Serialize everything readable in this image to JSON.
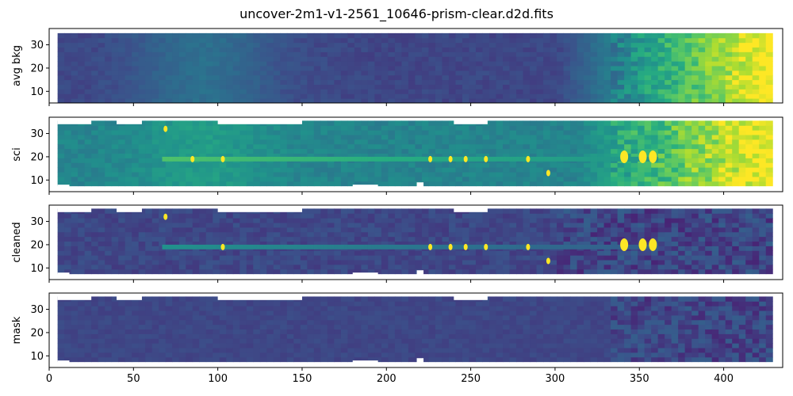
{
  "figure": {
    "title": "uncover-2m1-v1-2561_10646-prism-clear.d2d.fits"
  },
  "colors": {
    "colormap": "viridis",
    "background_fill": "#3b4a8a",
    "low": "#3e4c8a",
    "mid": "#21918c",
    "high": "#fde725"
  },
  "chart_data": [
    {
      "type": "heatmap",
      "name": "avg bkg",
      "ylabel": "avg bkg",
      "xlim": [
        0,
        435
      ],
      "ylim": [
        5,
        37
      ],
      "xticks": [
        0,
        50,
        100,
        150,
        200,
        250,
        300,
        350,
        400
      ],
      "yticks": [
        10,
        20,
        30
      ],
      "show_x_tick_labels": false,
      "valid_x_range": [
        5,
        428
      ],
      "valid_y_range": [
        5,
        35
      ],
      "description_of_values": "background rises from ~0.1 at left to saturation near x~360-428; faint horizontal striping every ~4 px",
      "emission_blobs": []
    },
    {
      "type": "heatmap",
      "name": "sci",
      "ylabel": "sci",
      "xlim": [
        0,
        435
      ],
      "ylim": [
        5,
        37
      ],
      "xticks": [
        0,
        50,
        100,
        150,
        200,
        250,
        300,
        350,
        400
      ],
      "yticks": [
        10,
        20,
        30
      ],
      "show_x_tick_labels": false,
      "trace_y": 19,
      "trace_x_range": [
        67,
        360
      ],
      "emission_blobs": [
        {
          "x": 69,
          "y": 32
        },
        {
          "x": 85,
          "y": 19
        },
        {
          "x": 103,
          "y": 19
        },
        {
          "x": 226,
          "y": 19
        },
        {
          "x": 238,
          "y": 19
        },
        {
          "x": 247,
          "y": 19
        },
        {
          "x": 259,
          "y": 19
        },
        {
          "x": 284,
          "y": 19
        },
        {
          "x": 296,
          "y": 13
        },
        {
          "x": 341,
          "y": 20
        },
        {
          "x": 352,
          "y": 20
        },
        {
          "x": 358,
          "y": 20
        }
      ]
    },
    {
      "type": "heatmap",
      "name": "cleaned",
      "ylabel": "cleaned",
      "xlim": [
        0,
        435
      ],
      "ylim": [
        5,
        37
      ],
      "xticks": [
        0,
        50,
        100,
        150,
        200,
        250,
        300,
        350,
        400
      ],
      "yticks": [
        10,
        20,
        30
      ],
      "show_x_tick_labels": false,
      "trace_y": 19,
      "trace_x_range": [
        67,
        360
      ],
      "emission_blobs": [
        {
          "x": 69,
          "y": 32
        },
        {
          "x": 103,
          "y": 19
        },
        {
          "x": 226,
          "y": 19
        },
        {
          "x": 238,
          "y": 19
        },
        {
          "x": 247,
          "y": 19
        },
        {
          "x": 259,
          "y": 19
        },
        {
          "x": 284,
          "y": 19
        },
        {
          "x": 296,
          "y": 13
        },
        {
          "x": 341,
          "y": 20
        },
        {
          "x": 352,
          "y": 20
        },
        {
          "x": 358,
          "y": 20
        }
      ]
    },
    {
      "type": "heatmap",
      "name": "mask",
      "ylabel": "mask",
      "xlim": [
        0,
        435
      ],
      "ylim": [
        5,
        37
      ],
      "xticks": [
        0,
        50,
        100,
        150,
        200,
        250,
        300,
        350,
        400
      ],
      "yticks": [
        10,
        20,
        30
      ],
      "show_x_tick_labels": true,
      "emission_blobs": []
    }
  ]
}
